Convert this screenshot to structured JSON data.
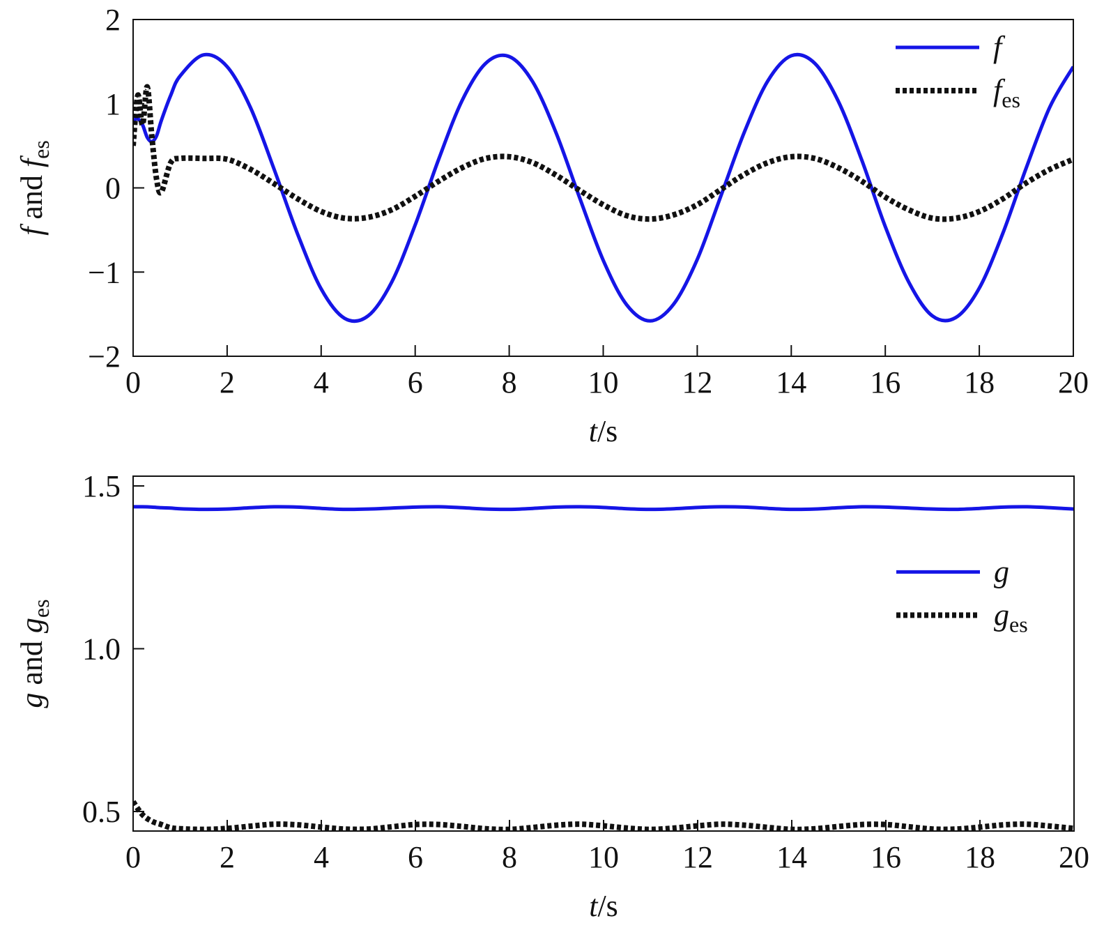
{
  "chart_data": [
    {
      "type": "line",
      "xlabel": [
        "t",
        "/s"
      ],
      "ylabel": [
        "f",
        " and ",
        "f",
        "es"
      ],
      "x": [
        0,
        0.1,
        0.2,
        0.3,
        0.4,
        0.5,
        0.6,
        0.8,
        1.0,
        1.5,
        2.0,
        2.5,
        3.0,
        3.5,
        4.0,
        4.5,
        5.0,
        5.5,
        6.0,
        6.5,
        7.0,
        7.5,
        8.0,
        8.5,
        9.0,
        9.5,
        10.0,
        10.5,
        11.0,
        11.5,
        12.0,
        12.5,
        13.0,
        13.5,
        14.0,
        14.5,
        15.0,
        15.5,
        16.0,
        16.5,
        17.0,
        17.5,
        18.0,
        18.5,
        19.0,
        19.5,
        20.0
      ],
      "series": [
        {
          "name": [
            "f"
          ],
          "color": "#1515e6",
          "style": "solid",
          "values": [
            0.8,
            0.82,
            0.75,
            0.6,
            0.55,
            0.62,
            0.8,
            1.1,
            1.33,
            1.58,
            1.44,
            0.95,
            0.22,
            -0.55,
            -1.2,
            -1.55,
            -1.52,
            -1.12,
            -0.44,
            0.34,
            1.04,
            1.48,
            1.56,
            1.26,
            0.65,
            -0.12,
            -0.86,
            -1.39,
            -1.58,
            -1.38,
            -0.85,
            -0.1,
            0.66,
            1.27,
            1.57,
            1.48,
            1.03,
            0.33,
            -0.46,
            -1.12,
            -1.52,
            -1.54,
            -1.19,
            -0.54,
            0.24,
            0.96,
            1.44
          ]
        },
        {
          "name": [
            "f",
            "es"
          ],
          "color": "#111111",
          "style": "dotted",
          "values": [
            0.5,
            1.1,
            0.75,
            1.2,
            0.6,
            0.1,
            -0.05,
            0.3,
            0.35,
            0.35,
            0.34,
            0.22,
            0.05,
            -0.13,
            -0.28,
            -0.36,
            -0.35,
            -0.26,
            -0.1,
            0.08,
            0.24,
            0.35,
            0.37,
            0.3,
            0.15,
            -0.03,
            -0.2,
            -0.33,
            -0.37,
            -0.32,
            -0.2,
            -0.02,
            0.16,
            0.3,
            0.37,
            0.35,
            0.24,
            0.08,
            -0.11,
            -0.26,
            -0.36,
            -0.36,
            -0.28,
            -0.13,
            0.06,
            0.22,
            0.34
          ]
        }
      ],
      "xlim": [
        0,
        20
      ],
      "xticks": [
        0,
        2,
        4,
        6,
        8,
        10,
        12,
        14,
        16,
        18,
        20
      ],
      "ylim": [
        -2,
        2
      ],
      "yticks": [
        {
          "value": -2,
          "label": "−2"
        },
        {
          "value": -1,
          "label": "−1"
        },
        0,
        1,
        2
      ],
      "legend": "upper right"
    },
    {
      "type": "line",
      "xlabel": [
        "t",
        "/s"
      ],
      "ylabel": [
        "g",
        " and ",
        "g",
        "es"
      ],
      "x": [
        0,
        0.2,
        0.4,
        0.6,
        0.8,
        1.0,
        1.5,
        2.0,
        2.5,
        3.0,
        3.5,
        4.0,
        4.5,
        5.0,
        5.5,
        6.0,
        6.5,
        7.0,
        7.5,
        8.0,
        8.5,
        9.0,
        9.5,
        10.0,
        10.5,
        11.0,
        11.5,
        12.0,
        12.5,
        13.0,
        13.5,
        14.0,
        14.5,
        15.0,
        15.5,
        16.0,
        16.5,
        17.0,
        17.5,
        18.0,
        18.5,
        19.0,
        19.5,
        20.0
      ],
      "series": [
        {
          "name": [
            "g"
          ],
          "color": "#1515e6",
          "style": "solid",
          "values": [
            1.436,
            1.436,
            1.435,
            1.433,
            1.432,
            1.43,
            1.428,
            1.429,
            1.433,
            1.436,
            1.435,
            1.431,
            1.428,
            1.429,
            1.432,
            1.435,
            1.436,
            1.433,
            1.429,
            1.428,
            1.431,
            1.435,
            1.436,
            1.434,
            1.43,
            1.428,
            1.43,
            1.434,
            1.436,
            1.435,
            1.431,
            1.428,
            1.429,
            1.433,
            1.436,
            1.435,
            1.432,
            1.429,
            1.428,
            1.431,
            1.435,
            1.436,
            1.433,
            1.429
          ]
        },
        {
          "name": [
            "g",
            "es"
          ],
          "color": "#111111",
          "style": "dotted",
          "values": [
            0.53,
            0.49,
            0.47,
            0.46,
            0.45,
            0.447,
            0.445,
            0.448,
            0.455,
            0.461,
            0.459,
            0.452,
            0.446,
            0.446,
            0.453,
            0.46,
            0.46,
            0.454,
            0.447,
            0.445,
            0.451,
            0.458,
            0.461,
            0.456,
            0.449,
            0.445,
            0.449,
            0.456,
            0.461,
            0.458,
            0.451,
            0.445,
            0.447,
            0.454,
            0.46,
            0.46,
            0.453,
            0.446,
            0.446,
            0.452,
            0.459,
            0.461,
            0.455,
            0.448
          ]
        }
      ],
      "xlim": [
        0,
        20
      ],
      "xticks": [
        0,
        2,
        4,
        6,
        8,
        10,
        12,
        14,
        16,
        18,
        20
      ],
      "ylim": [
        0.44,
        1.53
      ],
      "yticks": [
        0.5,
        {
          "value": 1,
          "label": "1.0"
        },
        1.5
      ],
      "legend": "right"
    }
  ]
}
